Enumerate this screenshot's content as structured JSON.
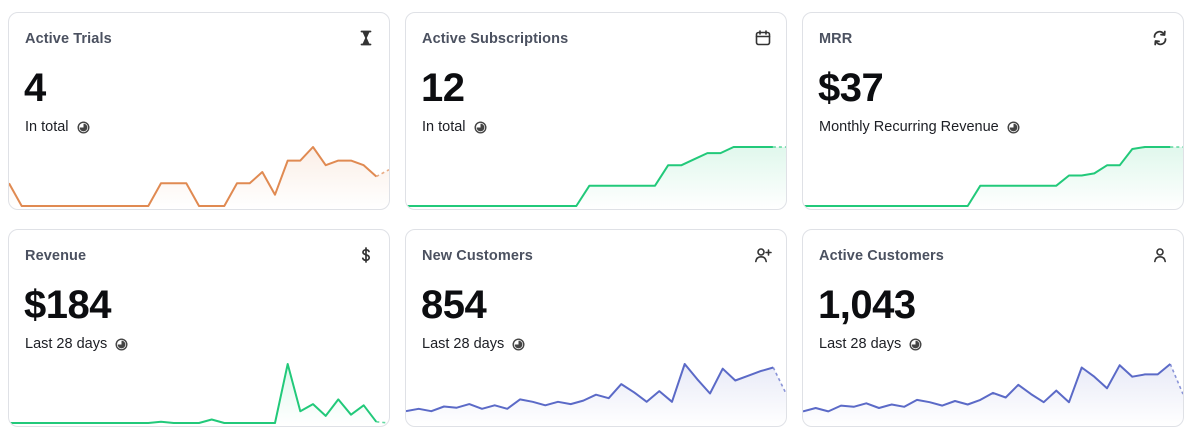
{
  "cards": [
    {
      "title": "Active Trials",
      "value": "4",
      "subtitle": "In total",
      "icon": "hourglass-icon",
      "color": "#e08a52",
      "series": [
        1,
        0,
        0,
        0,
        0,
        0,
        0,
        0,
        0,
        0,
        0,
        0,
        1,
        1,
        1,
        0,
        0,
        0,
        1,
        1,
        1.5,
        0.5,
        2,
        2,
        2.6,
        1.8,
        2,
        2,
        1.8,
        1.3,
        1.6
      ]
    },
    {
      "title": "Active Subscriptions",
      "value": "12",
      "subtitle": "In total",
      "icon": "calendar-icon",
      "color": "#22c97a",
      "series": [
        0,
        0,
        0,
        0,
        0,
        0,
        0,
        0,
        0,
        0,
        0,
        0,
        0,
        0,
        1,
        1,
        1,
        1,
        1,
        1,
        2,
        2,
        2.3,
        2.6,
        2.6,
        2.9,
        2.9,
        2.9,
        2.9,
        2.9
      ]
    },
    {
      "title": "MRR",
      "value": "$37",
      "subtitle": "Monthly Recurring Revenue",
      "icon": "refresh-icon",
      "color": "#22c97a",
      "series": [
        0,
        0,
        0,
        0,
        0,
        0,
        0,
        0,
        0,
        0,
        0,
        0,
        0,
        0,
        1,
        1,
        1,
        1,
        1,
        1,
        1,
        1.5,
        1.5,
        1.6,
        2,
        2,
        2.8,
        2.9,
        2.9,
        2.9,
        2.9
      ]
    },
    {
      "title": "Revenue",
      "value": "$184",
      "subtitle": "Last 28 days",
      "icon": "dollar-icon",
      "color": "#22c97a",
      "series": [
        0,
        0,
        0,
        0,
        0,
        0,
        0,
        0,
        0,
        0,
        0,
        0,
        0.1,
        0,
        0,
        0,
        0.3,
        0,
        0,
        0,
        0,
        0,
        5,
        1,
        1.6,
        0.6,
        2,
        0.7,
        1.5,
        0.1,
        0
      ]
    },
    {
      "title": "New Customers",
      "value": "854",
      "subtitle": "Last 28 days",
      "icon": "add-user-icon",
      "color": "#5b6ac7",
      "series": [
        1,
        1.2,
        1,
        1.4,
        1.3,
        1.6,
        1.2,
        1.5,
        1.2,
        2,
        1.8,
        1.5,
        1.8,
        1.6,
        1.9,
        2.4,
        2.1,
        3.3,
        2.6,
        1.8,
        2.7,
        1.8,
        5,
        3.7,
        2.5,
        4.6,
        3.6,
        4,
        4.4,
        4.7,
        2.5
      ]
    },
    {
      "title": "Active Customers",
      "value": "1,043",
      "subtitle": "Last 28 days",
      "icon": "user-icon",
      "color": "#5b6ac7",
      "series": [
        1,
        1.3,
        1,
        1.5,
        1.4,
        1.7,
        1.3,
        1.6,
        1.4,
        2,
        1.8,
        1.5,
        1.9,
        1.6,
        2,
        2.6,
        2.2,
        3.3,
        2.5,
        1.8,
        2.8,
        1.8,
        4.8,
        4,
        3,
        5,
        4,
        4.2,
        4.2,
        5.1,
        2.5
      ]
    }
  ]
}
